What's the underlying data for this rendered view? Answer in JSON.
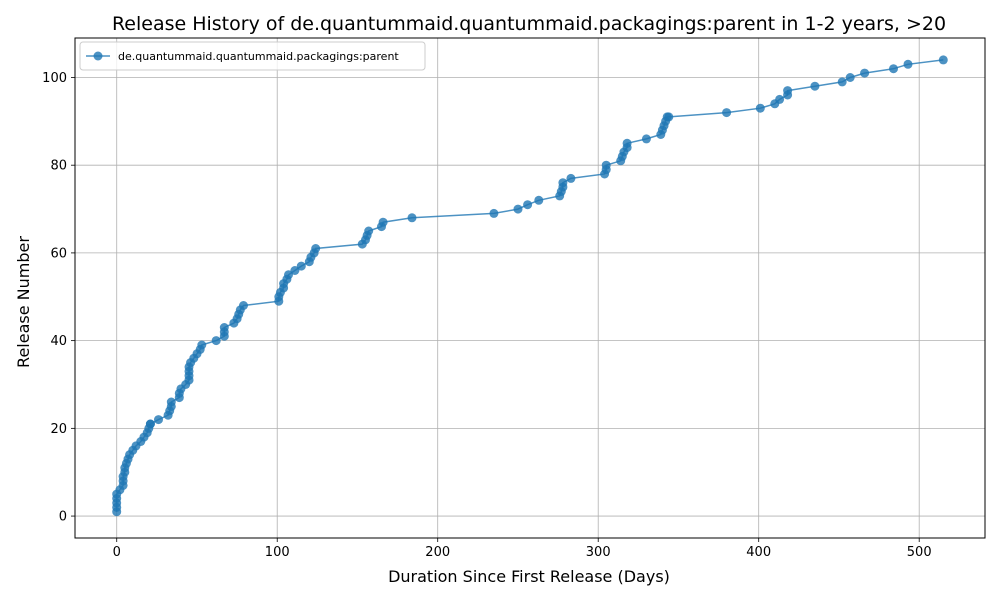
{
  "chart_data": {
    "type": "line",
    "title": "Release History of de.quantummaid.quantummaid.packagings:parent in 1-2 years, >20",
    "xlabel": "Duration Since First Release (Days)",
    "ylabel": "Release Number",
    "xlim": [
      -26,
      541
    ],
    "ylim": [
      -5,
      109
    ],
    "xticks": [
      0,
      100,
      200,
      300,
      400,
      500
    ],
    "yticks": [
      0,
      20,
      40,
      60,
      80,
      100
    ],
    "grid": true,
    "legend_position": "top-left",
    "colors": {
      "series": "#1f77b4"
    },
    "series": [
      {
        "name": "de.quantummaid.quantummaid.packagings:parent",
        "x": [
          0,
          0,
          0,
          0,
          0,
          2,
          4,
          4,
          4,
          5,
          5,
          6,
          7,
          8,
          10,
          12,
          15,
          17,
          19,
          20,
          21,
          21,
          26,
          32,
          33,
          34,
          34,
          39,
          39,
          40,
          43,
          45,
          45,
          45,
          45,
          46,
          48,
          50,
          52,
          53,
          62,
          67,
          67,
          67,
          73,
          75,
          76,
          77,
          79,
          101,
          101,
          102,
          104,
          104,
          106,
          107,
          111,
          115,
          120,
          121,
          123,
          124,
          153,
          155,
          156,
          157,
          165,
          166,
          184,
          235,
          250,
          256,
          263,
          276,
          277,
          278,
          278,
          283,
          304,
          305,
          305,
          314,
          315,
          316,
          318,
          318,
          330,
          339,
          340,
          341,
          342,
          343,
          344,
          380,
          401,
          410,
          413,
          418,
          418,
          435,
          452,
          457,
          466,
          484,
          493,
          515
        ],
        "y": [
          1,
          2,
          3,
          4,
          5,
          6,
          7,
          8,
          9,
          10,
          11,
          12,
          13,
          14,
          15,
          16,
          17,
          18,
          19,
          20,
          21,
          21,
          22,
          23,
          24,
          25,
          26,
          27,
          28,
          29,
          30,
          31,
          32,
          33,
          34,
          35,
          36,
          37,
          38,
          39,
          40,
          41,
          42,
          43,
          44,
          45,
          46,
          47,
          48,
          49,
          50,
          51,
          52,
          53,
          54,
          55,
          56,
          57,
          58,
          59,
          60,
          61,
          62,
          63,
          64,
          65,
          66,
          67,
          68,
          69,
          70,
          71,
          72,
          73,
          74,
          75,
          76,
          77,
          78,
          79,
          80,
          81,
          82,
          83,
          84,
          85,
          86,
          87,
          88,
          89,
          90,
          91,
          91,
          92,
          93,
          94,
          95,
          96,
          97,
          98,
          99,
          100,
          101,
          102,
          103,
          104
        ]
      }
    ]
  }
}
